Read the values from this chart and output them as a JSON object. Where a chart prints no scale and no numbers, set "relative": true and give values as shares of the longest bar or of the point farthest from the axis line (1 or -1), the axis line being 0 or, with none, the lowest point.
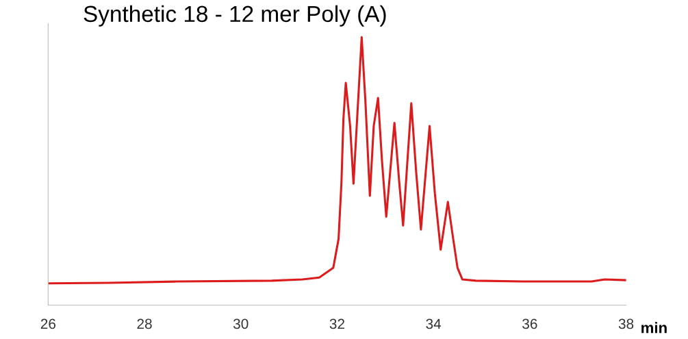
{
  "chart_data": {
    "type": "line",
    "title": "Synthetic 18 - 12 mer Poly (A)",
    "xlabel": "min",
    "relative": true,
    "x": [
      26.0,
      27.26,
      28.67,
      30.64,
      31.28,
      31.63,
      31.92,
      32.03,
      32.09,
      32.13,
      32.18,
      32.27,
      32.34,
      32.42,
      32.51,
      32.59,
      32.68,
      32.76,
      32.85,
      32.93,
      33.02,
      33.19,
      33.29,
      33.37,
      33.54,
      33.64,
      33.74,
      33.92,
      34.03,
      34.15,
      34.3,
      34.41,
      34.5,
      34.6,
      34.88,
      35.87,
      37.28,
      37.56,
      38.0
    ],
    "series": [
      {
        "color": "#dc1c1c",
        "values": [
          0.081,
          0.083,
          0.088,
          0.091,
          0.096,
          0.103,
          0.139,
          0.247,
          0.458,
          0.693,
          0.829,
          0.668,
          0.453,
          0.71,
          1.0,
          0.751,
          0.408,
          0.668,
          0.773,
          0.542,
          0.33,
          0.68,
          0.458,
          0.297,
          0.753,
          0.499,
          0.282,
          0.668,
          0.416,
          0.207,
          0.385,
          0.247,
          0.139,
          0.096,
          0.091,
          0.088,
          0.088,
          0.096,
          0.093
        ]
      }
    ],
    "xlim": [
      26,
      38
    ],
    "xticks": [
      26,
      28,
      30,
      32,
      34,
      36,
      38
    ],
    "grid": false,
    "legend": false,
    "marker": "none",
    "line_style": "solid"
  }
}
